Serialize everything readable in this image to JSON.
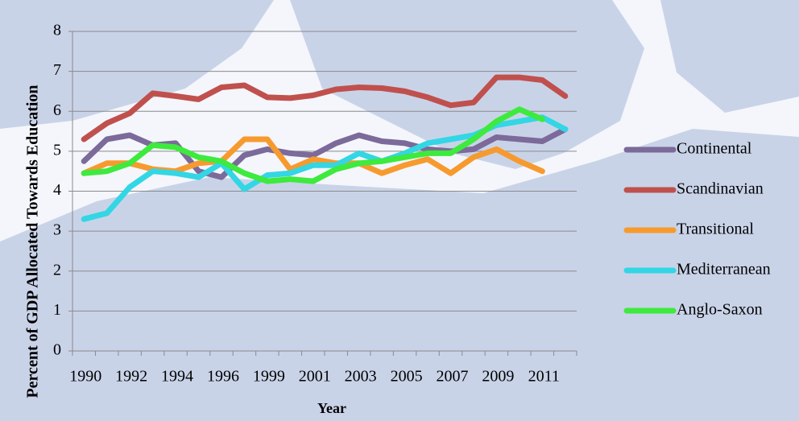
{
  "chart_data": {
    "type": "line",
    "y_label": "Percent of GDP Allocated Towards Education",
    "x_label": "Year",
    "categories": [
      "1990",
      null,
      "1992",
      null,
      "1994",
      null,
      "1996",
      null,
      "1999",
      null,
      "2001",
      null,
      "2003",
      null,
      "2005",
      null,
      "2007",
      null,
      "2009",
      null,
      "2011",
      null
    ],
    "series": [
      {
        "name": "Continental",
        "color": "#7b6a9a",
        "values": [
          4.75,
          5.3,
          5.4,
          5.15,
          5.2,
          4.5,
          4.35,
          4.9,
          5.05,
          4.95,
          4.9,
          5.2,
          5.4,
          5.25,
          5.2,
          5.05,
          5.0,
          5.05,
          5.35,
          5.3,
          5.25,
          5.55
        ]
      },
      {
        "name": "Scandinavian",
        "color": "#c0504d",
        "values": [
          5.3,
          5.7,
          5.95,
          6.45,
          6.38,
          6.3,
          6.6,
          6.65,
          6.35,
          6.33,
          6.4,
          6.55,
          6.6,
          6.58,
          6.5,
          6.35,
          6.15,
          6.22,
          6.85,
          6.85,
          6.78,
          6.38
        ]
      },
      {
        "name": "Transitional",
        "color": "#f79a2e",
        "values": [
          4.45,
          4.7,
          4.7,
          4.55,
          4.5,
          4.7,
          4.75,
          5.3,
          5.3,
          4.55,
          4.8,
          4.7,
          4.7,
          4.45,
          4.65,
          4.8,
          4.45,
          4.85,
          5.05,
          4.75,
          4.5,
          null
        ]
      },
      {
        "name": "Mediterranean",
        "color": "#33d6e4",
        "values": [
          3.3,
          3.45,
          4.1,
          4.5,
          4.45,
          4.35,
          4.7,
          4.05,
          4.4,
          4.45,
          4.65,
          4.65,
          4.95,
          4.75,
          4.95,
          5.2,
          5.3,
          5.4,
          5.65,
          5.75,
          5.85,
          5.55
        ]
      },
      {
        "name": "Anglo-Saxon",
        "color": "#3dea3d",
        "values": [
          4.45,
          4.5,
          4.7,
          5.15,
          5.1,
          4.85,
          4.75,
          4.45,
          4.25,
          4.3,
          4.25,
          4.55,
          4.7,
          4.75,
          4.85,
          4.95,
          4.95,
          5.3,
          5.75,
          6.05,
          5.8,
          null
        ]
      }
    ],
    "ylim": [
      0,
      8
    ],
    "yticks": [
      0,
      1,
      2,
      3,
      4,
      5,
      6,
      7,
      8
    ],
    "grid": true,
    "legend": "right"
  }
}
